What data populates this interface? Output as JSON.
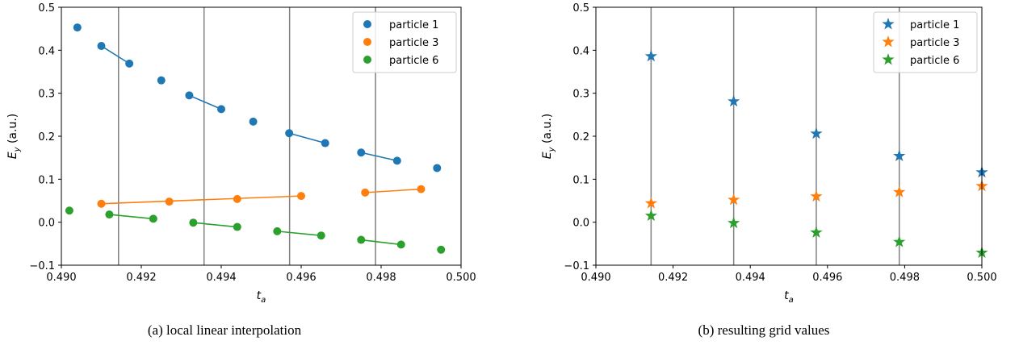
{
  "charts": [
    {
      "id": "a",
      "caption": "(a) local linear interpolation",
      "chart_data": {
        "type": "scatter",
        "xlabel_main": "t",
        "xlabel_sub": "a",
        "ylabel": "E_y (a.u.)",
        "ylabel_main": "E",
        "ylabel_sub": "y",
        "ylabel_rest": " (a.u.)",
        "xlim": [
          0.49,
          0.5
        ],
        "ylim": [
          -0.1,
          0.5
        ],
        "xticks": [
          0.49,
          0.492,
          0.494,
          0.496,
          0.498,
          0.5
        ],
        "xtick_labels": [
          "0.490",
          "0.492",
          "0.494",
          "0.496",
          "0.498",
          "0.500"
        ],
        "yticks": [
          -0.1,
          0.0,
          0.1,
          0.2,
          0.3,
          0.4,
          0.5
        ],
        "ytick_labels": [
          "−0.1",
          "0.0",
          "0.1",
          "0.2",
          "0.3",
          "0.4",
          "0.5"
        ],
        "grid_x": [
          0.49143,
          0.49357,
          0.49571,
          0.49786
        ],
        "legend_position": "top-right",
        "marker": "circle",
        "series": [
          {
            "name": "particle 1",
            "color": "#1f77b4",
            "points": [
              [
                0.4904,
                0.453
              ],
              [
                0.491,
                0.41
              ],
              [
                0.4917,
                0.369
              ],
              [
                0.4925,
                0.33
              ],
              [
                0.4932,
                0.295
              ],
              [
                0.494,
                0.263
              ],
              [
                0.4948,
                0.234
              ],
              [
                0.4957,
                0.207
              ],
              [
                0.4966,
                0.184
              ],
              [
                0.4975,
                0.162
              ],
              [
                0.4984,
                0.143
              ],
              [
                0.4994,
                0.126
              ]
            ],
            "segments": [
              [
                [
                  0.491,
                  0.41
                ],
                [
                  0.4917,
                  0.369
                ]
              ],
              [
                [
                  0.4932,
                  0.295
                ],
                [
                  0.494,
                  0.263
                ]
              ],
              [
                [
                  0.4957,
                  0.207
                ],
                [
                  0.4966,
                  0.184
                ]
              ],
              [
                [
                  0.4975,
                  0.162
                ],
                [
                  0.4984,
                  0.143
                ]
              ]
            ]
          },
          {
            "name": "particle 3",
            "color": "#ff7f0e",
            "points": [
              [
                0.491,
                0.043
              ],
              [
                0.4927,
                0.048
              ],
              [
                0.4944,
                0.054
              ],
              [
                0.496,
                0.061
              ],
              [
                0.4976,
                0.069
              ],
              [
                0.499,
                0.077
              ]
            ],
            "segments": [
              [
                [
                  0.491,
                  0.043
                ],
                [
                  0.496,
                  0.061
                ]
              ],
              [
                [
                  0.4976,
                  0.069
                ],
                [
                  0.499,
                  0.077
                ]
              ]
            ]
          },
          {
            "name": "particle 6",
            "color": "#2ca02c",
            "points": [
              [
                0.4902,
                0.027
              ],
              [
                0.4912,
                0.018
              ],
              [
                0.4923,
                0.008
              ],
              [
                0.4933,
                -0.001
              ],
              [
                0.4944,
                -0.011
              ],
              [
                0.4954,
                -0.021
              ],
              [
                0.4965,
                -0.031
              ],
              [
                0.4975,
                -0.041
              ],
              [
                0.4985,
                -0.052
              ],
              [
                0.4995,
                -0.064
              ]
            ],
            "segments": [
              [
                [
                  0.4912,
                  0.018
                ],
                [
                  0.4923,
                  0.008
                ]
              ],
              [
                [
                  0.4933,
                  -0.001
                ],
                [
                  0.4944,
                  -0.011
                ]
              ],
              [
                [
                  0.4954,
                  -0.021
                ],
                [
                  0.4965,
                  -0.031
                ]
              ],
              [
                [
                  0.4975,
                  -0.041
                ],
                [
                  0.4985,
                  -0.052
                ]
              ]
            ]
          }
        ]
      }
    },
    {
      "id": "b",
      "caption": "(b) resulting grid values",
      "chart_data": {
        "type": "scatter",
        "xlabel_main": "t",
        "xlabel_sub": "a",
        "ylabel": "E_y (a.u.)",
        "ylabel_main": "E",
        "ylabel_sub": "y",
        "ylabel_rest": " (a.u.)",
        "xlim": [
          0.49,
          0.5
        ],
        "ylim": [
          -0.1,
          0.5
        ],
        "xticks": [
          0.49,
          0.492,
          0.494,
          0.496,
          0.498,
          0.5
        ],
        "xtick_labels": [
          "0.490",
          "0.492",
          "0.494",
          "0.496",
          "0.498",
          "0.500"
        ],
        "yticks": [
          -0.1,
          0.0,
          0.1,
          0.2,
          0.3,
          0.4,
          0.5
        ],
        "ytick_labels": [
          "−0.1",
          "0.0",
          "0.1",
          "0.2",
          "0.3",
          "0.4",
          "0.5"
        ],
        "grid_x": [
          0.49143,
          0.49357,
          0.49571,
          0.49786
        ],
        "legend_position": "top-right",
        "marker": "star",
        "series": [
          {
            "name": "particle 1",
            "color": "#1f77b4",
            "points": [
              [
                0.49143,
                0.386
              ],
              [
                0.49357,
                0.281
              ],
              [
                0.49571,
                0.206
              ],
              [
                0.49786,
                0.154
              ],
              [
                0.5,
                0.116
              ]
            ],
            "segments": []
          },
          {
            "name": "particle 3",
            "color": "#ff7f0e",
            "points": [
              [
                0.49143,
                0.044
              ],
              [
                0.49357,
                0.052
              ],
              [
                0.49571,
                0.06
              ],
              [
                0.49786,
                0.07
              ],
              [
                0.5,
                0.084
              ]
            ],
            "segments": []
          },
          {
            "name": "particle 6",
            "color": "#2ca02c",
            "points": [
              [
                0.49143,
                0.015
              ],
              [
                0.49357,
                -0.002
              ],
              [
                0.49571,
                -0.024
              ],
              [
                0.49786,
                -0.046
              ],
              [
                0.5,
                -0.071
              ]
            ],
            "segments": []
          }
        ]
      }
    }
  ]
}
